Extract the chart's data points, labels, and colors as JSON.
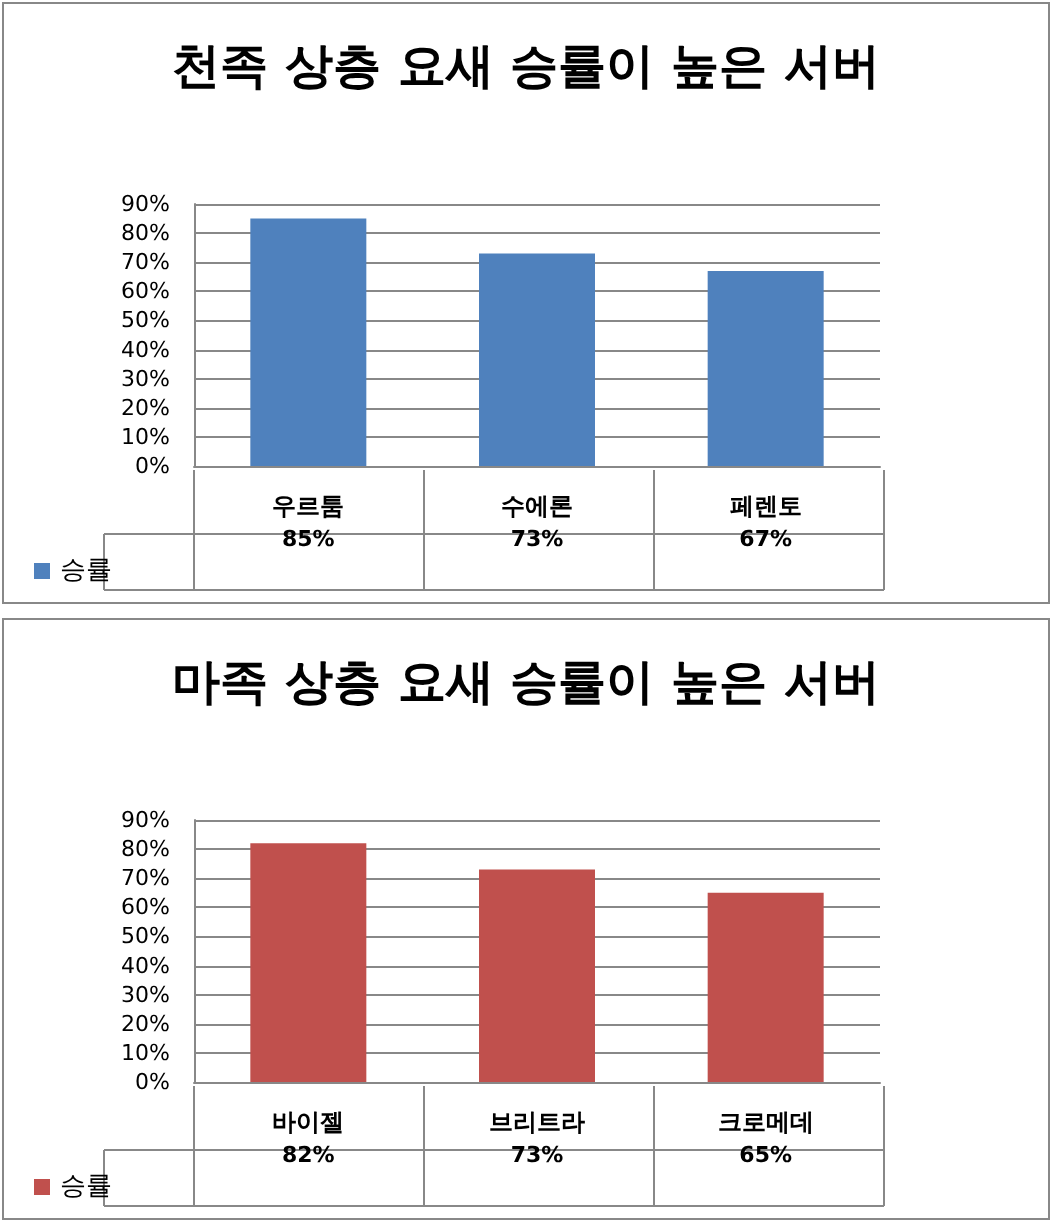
{
  "chart_data": [
    {
      "type": "bar",
      "title": "천족 상층 요새 승률이 높은 서버",
      "categories": [
        "우르툼",
        "수에론",
        "페렌토"
      ],
      "series": [
        {
          "name": "승률",
          "color": "#4f81bd",
          "values": [
            85,
            73,
            67
          ],
          "value_labels": [
            "85%",
            "73%",
            "67%"
          ]
        }
      ],
      "ylim": [
        0,
        90
      ],
      "yticks": [
        {
          "value": 0,
          "label": "0%"
        },
        {
          "value": 10,
          "label": "10%"
        },
        {
          "value": 20,
          "label": "20%"
        },
        {
          "value": 30,
          "label": "30%"
        },
        {
          "value": 40,
          "label": "40%"
        },
        {
          "value": 50,
          "label": "50%"
        },
        {
          "value": 60,
          "label": "60%"
        },
        {
          "value": 70,
          "label": "70%"
        },
        {
          "value": 80,
          "label": "80%"
        },
        {
          "value": 90,
          "label": "90%"
        }
      ],
      "grid": "y",
      "legend": "bottom left"
    },
    {
      "type": "bar",
      "title": "마족 상층 요새 승률이 높은 서버",
      "categories": [
        "바이젤",
        "브리트라",
        "크로메데"
      ],
      "series": [
        {
          "name": "승률",
          "color": "#c0504d",
          "values": [
            82,
            73,
            65
          ],
          "value_labels": [
            "82%",
            "73%",
            "65%"
          ]
        }
      ],
      "ylim": [
        0,
        90
      ],
      "yticks": [
        {
          "value": 0,
          "label": "0%"
        },
        {
          "value": 10,
          "label": "10%"
        },
        {
          "value": 20,
          "label": "20%"
        },
        {
          "value": 30,
          "label": "30%"
        },
        {
          "value": 40,
          "label": "40%"
        },
        {
          "value": 50,
          "label": "50%"
        },
        {
          "value": 60,
          "label": "60%"
        },
        {
          "value": 70,
          "label": "70%"
        },
        {
          "value": 80,
          "label": "80%"
        },
        {
          "value": 90,
          "label": "90%"
        }
      ],
      "grid": "y",
      "legend": "bottom left"
    }
  ]
}
